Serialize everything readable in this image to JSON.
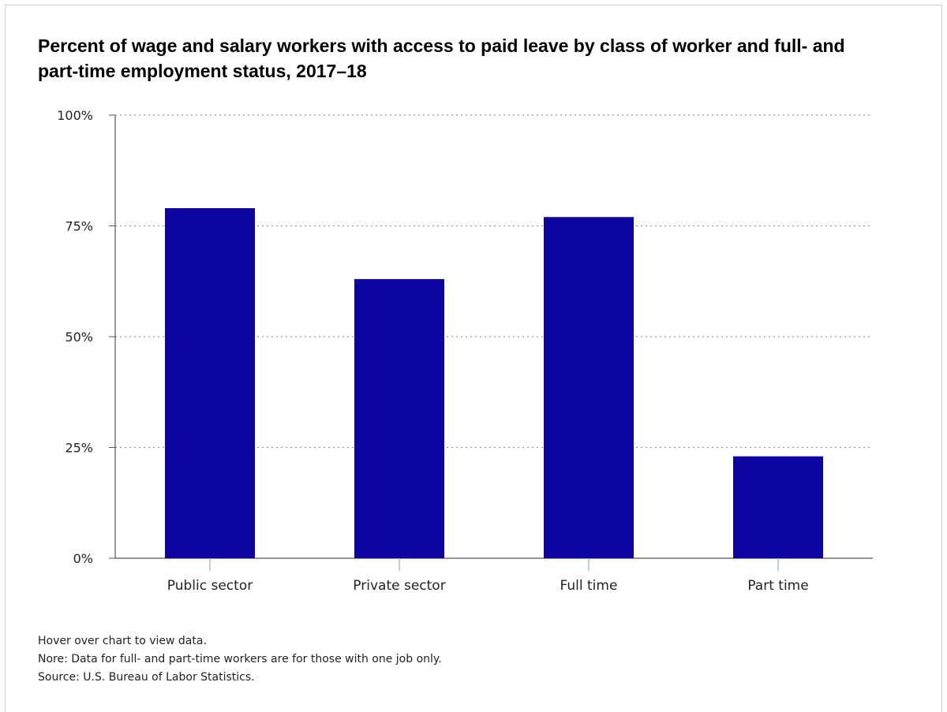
{
  "title": "Percent of wage and salary workers with access to paid leave by class of worker and full- and part-time employment status, 2017–18",
  "notes": {
    "hover": "Hover over chart to view data.",
    "note": "Nore: Data for full- and part-time workers are for those with one job only.",
    "source": "Source: U.S. Bureau of Labor Statistics."
  },
  "colors": {
    "bar": "#0d05a0",
    "grid": "#9a9a9a",
    "axis": "#555555"
  },
  "chart_data": {
    "type": "bar",
    "title": "Percent of wage and salary workers with access to paid leave by class of worker and full- and part-time employment status, 2017–18",
    "categories": [
      "Public sector",
      "Private sector",
      "Full time",
      "Part time"
    ],
    "values": [
      79,
      63,
      77,
      23
    ],
    "xlabel": "",
    "ylabel": "",
    "ylim": [
      0,
      100
    ],
    "yticks": [
      0,
      25,
      50,
      75,
      100
    ],
    "ytick_labels": [
      "0%",
      "25%",
      "50%",
      "75%",
      "100%"
    ],
    "grid": true,
    "grid_style": "dotted",
    "legend": "none"
  }
}
